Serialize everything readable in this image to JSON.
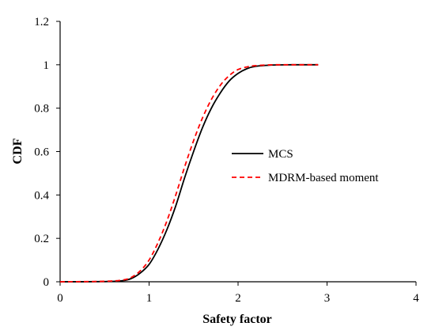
{
  "chart_data": {
    "type": "line",
    "xlabel": "Safety factor",
    "ylabel": "CDF",
    "xlim": [
      0,
      4
    ],
    "ylim": [
      0,
      1.2
    ],
    "x_ticks": [
      "0",
      "1",
      "2",
      "3",
      "4"
    ],
    "y_ticks": [
      "0",
      "0.2",
      "0.4",
      "0.6",
      "0.8",
      "1",
      "1.2"
    ],
    "grid": false,
    "legend_position": "right",
    "series": [
      {
        "name": "MCS",
        "color": "#000000",
        "style": "solid",
        "x": [
          0,
          0.5,
          0.7,
          0.8,
          0.9,
          1.0,
          1.1,
          1.2,
          1.3,
          1.4,
          1.5,
          1.6,
          1.7,
          1.8,
          1.9,
          2.0,
          2.1,
          2.2,
          2.4,
          2.6,
          2.9
        ],
        "y": [
          0,
          0.001,
          0.005,
          0.015,
          0.04,
          0.08,
          0.15,
          0.24,
          0.35,
          0.48,
          0.6,
          0.71,
          0.8,
          0.87,
          0.925,
          0.96,
          0.982,
          0.993,
          0.999,
          1.0,
          1.0
        ]
      },
      {
        "name": "MDRM-based moment",
        "color": "#ff0000",
        "style": "dashed",
        "x": [
          0,
          0.5,
          0.7,
          0.8,
          0.9,
          1.0,
          1.1,
          1.2,
          1.3,
          1.4,
          1.5,
          1.6,
          1.7,
          1.8,
          1.9,
          2.0,
          2.1,
          2.2,
          2.4,
          2.6,
          2.9
        ],
        "y": [
          0,
          0.002,
          0.008,
          0.02,
          0.05,
          0.1,
          0.18,
          0.28,
          0.4,
          0.53,
          0.65,
          0.755,
          0.84,
          0.905,
          0.95,
          0.978,
          0.99,
          0.996,
          1.0,
          1.0,
          1.0
        ]
      }
    ]
  }
}
